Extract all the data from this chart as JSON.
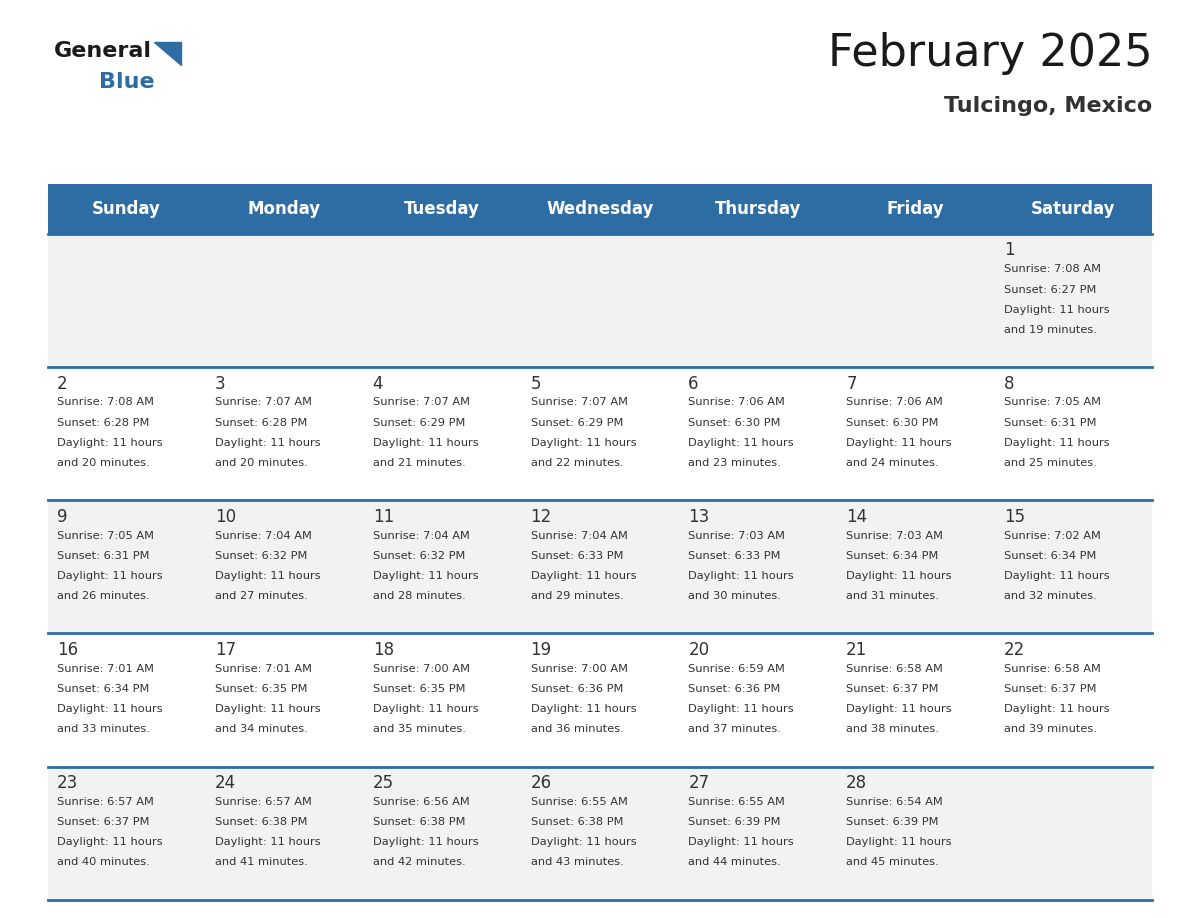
{
  "title": "February 2025",
  "subtitle": "Tulcingo, Mexico",
  "header_bg": "#2E6DA4",
  "header_text_color": "#FFFFFF",
  "cell_bg_odd": "#F2F2F2",
  "cell_bg_even": "#FFFFFF",
  "cell_bg_header_row": "#F2F2F2",
  "day_headers": [
    "Sunday",
    "Monday",
    "Tuesday",
    "Wednesday",
    "Thursday",
    "Friday",
    "Saturday"
  ],
  "days": [
    {
      "day": 1,
      "col": 6,
      "row": 0,
      "sunrise": "7:08 AM",
      "sunset": "6:27 PM",
      "daylight": "11 hours and 19 minutes."
    },
    {
      "day": 2,
      "col": 0,
      "row": 1,
      "sunrise": "7:08 AM",
      "sunset": "6:28 PM",
      "daylight": "11 hours and 20 minutes."
    },
    {
      "day": 3,
      "col": 1,
      "row": 1,
      "sunrise": "7:07 AM",
      "sunset": "6:28 PM",
      "daylight": "11 hours and 20 minutes."
    },
    {
      "day": 4,
      "col": 2,
      "row": 1,
      "sunrise": "7:07 AM",
      "sunset": "6:29 PM",
      "daylight": "11 hours and 21 minutes."
    },
    {
      "day": 5,
      "col": 3,
      "row": 1,
      "sunrise": "7:07 AM",
      "sunset": "6:29 PM",
      "daylight": "11 hours and 22 minutes."
    },
    {
      "day": 6,
      "col": 4,
      "row": 1,
      "sunrise": "7:06 AM",
      "sunset": "6:30 PM",
      "daylight": "11 hours and 23 minutes."
    },
    {
      "day": 7,
      "col": 5,
      "row": 1,
      "sunrise": "7:06 AM",
      "sunset": "6:30 PM",
      "daylight": "11 hours and 24 minutes."
    },
    {
      "day": 8,
      "col": 6,
      "row": 1,
      "sunrise": "7:05 AM",
      "sunset": "6:31 PM",
      "daylight": "11 hours and 25 minutes."
    },
    {
      "day": 9,
      "col": 0,
      "row": 2,
      "sunrise": "7:05 AM",
      "sunset": "6:31 PM",
      "daylight": "11 hours and 26 minutes."
    },
    {
      "day": 10,
      "col": 1,
      "row": 2,
      "sunrise": "7:04 AM",
      "sunset": "6:32 PM",
      "daylight": "11 hours and 27 minutes."
    },
    {
      "day": 11,
      "col": 2,
      "row": 2,
      "sunrise": "7:04 AM",
      "sunset": "6:32 PM",
      "daylight": "11 hours and 28 minutes."
    },
    {
      "day": 12,
      "col": 3,
      "row": 2,
      "sunrise": "7:04 AM",
      "sunset": "6:33 PM",
      "daylight": "11 hours and 29 minutes."
    },
    {
      "day": 13,
      "col": 4,
      "row": 2,
      "sunrise": "7:03 AM",
      "sunset": "6:33 PM",
      "daylight": "11 hours and 30 minutes."
    },
    {
      "day": 14,
      "col": 5,
      "row": 2,
      "sunrise": "7:03 AM",
      "sunset": "6:34 PM",
      "daylight": "11 hours and 31 minutes."
    },
    {
      "day": 15,
      "col": 6,
      "row": 2,
      "sunrise": "7:02 AM",
      "sunset": "6:34 PM",
      "daylight": "11 hours and 32 minutes."
    },
    {
      "day": 16,
      "col": 0,
      "row": 3,
      "sunrise": "7:01 AM",
      "sunset": "6:34 PM",
      "daylight": "11 hours and 33 minutes."
    },
    {
      "day": 17,
      "col": 1,
      "row": 3,
      "sunrise": "7:01 AM",
      "sunset": "6:35 PM",
      "daylight": "11 hours and 34 minutes."
    },
    {
      "day": 18,
      "col": 2,
      "row": 3,
      "sunrise": "7:00 AM",
      "sunset": "6:35 PM",
      "daylight": "11 hours and 35 minutes."
    },
    {
      "day": 19,
      "col": 3,
      "row": 3,
      "sunrise": "7:00 AM",
      "sunset": "6:36 PM",
      "daylight": "11 hours and 36 minutes."
    },
    {
      "day": 20,
      "col": 4,
      "row": 3,
      "sunrise": "6:59 AM",
      "sunset": "6:36 PM",
      "daylight": "11 hours and 37 minutes."
    },
    {
      "day": 21,
      "col": 5,
      "row": 3,
      "sunrise": "6:58 AM",
      "sunset": "6:37 PM",
      "daylight": "11 hours and 38 minutes."
    },
    {
      "day": 22,
      "col": 6,
      "row": 3,
      "sunrise": "6:58 AM",
      "sunset": "6:37 PM",
      "daylight": "11 hours and 39 minutes."
    },
    {
      "day": 23,
      "col": 0,
      "row": 4,
      "sunrise": "6:57 AM",
      "sunset": "6:37 PM",
      "daylight": "11 hours and 40 minutes."
    },
    {
      "day": 24,
      "col": 1,
      "row": 4,
      "sunrise": "6:57 AM",
      "sunset": "6:38 PM",
      "daylight": "11 hours and 41 minutes."
    },
    {
      "day": 25,
      "col": 2,
      "row": 4,
      "sunrise": "6:56 AM",
      "sunset": "6:38 PM",
      "daylight": "11 hours and 42 minutes."
    },
    {
      "day": 26,
      "col": 3,
      "row": 4,
      "sunrise": "6:55 AM",
      "sunset": "6:38 PM",
      "daylight": "11 hours and 43 minutes."
    },
    {
      "day": 27,
      "col": 4,
      "row": 4,
      "sunrise": "6:55 AM",
      "sunset": "6:39 PM",
      "daylight": "11 hours and 44 minutes."
    },
    {
      "day": 28,
      "col": 5,
      "row": 4,
      "sunrise": "6:54 AM",
      "sunset": "6:39 PM",
      "daylight": "11 hours and 45 minutes."
    }
  ],
  "num_rows": 5,
  "num_cols": 7,
  "logo_text_general": "General",
  "logo_text_blue": "Blue",
  "logo_color_general": "#1a1a1a",
  "logo_color_blue": "#2E6DA4",
  "logo_triangle_color": "#2E6DA4",
  "text_color_dark": "#333333",
  "divider_color": "#2E6DA4",
  "cell_text_color": "#333333",
  "day_num_color": "#333333",
  "title_color": "#1a1a1a",
  "subtitle_color": "#333333"
}
